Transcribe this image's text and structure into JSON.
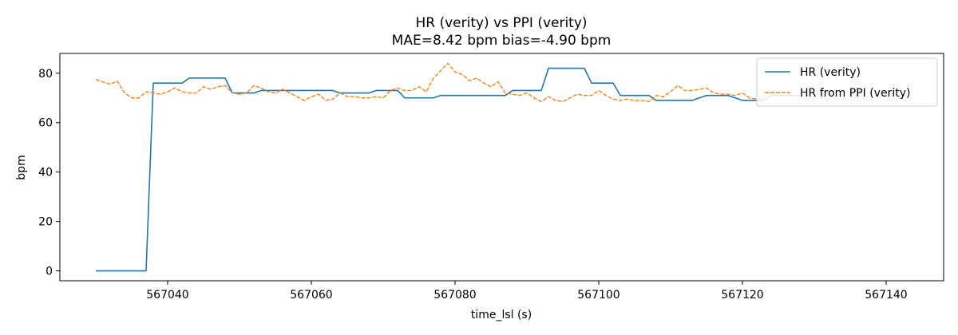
{
  "chart_data": {
    "type": "line",
    "title": "HR (verity) vs PPI (verity)",
    "subtitle": "MAE=8.42 bpm  bias=-4.90 bpm",
    "xlabel": "time_lsl (s)",
    "ylabel": "bpm",
    "xlim": [
      567025,
      567148
    ],
    "ylim": [
      -4,
      88
    ],
    "xticks": [
      567040,
      567060,
      567080,
      567100,
      567120,
      567140
    ],
    "yticks": [
      0,
      20,
      40,
      60,
      80
    ],
    "grid": false,
    "legend_position": "top-right",
    "series": [
      {
        "name": "HR (verity)",
        "color": "#1f77b4",
        "style": "solid",
        "points": [
          [
            567030,
            0
          ],
          [
            567037,
            0
          ],
          [
            567038,
            76
          ],
          [
            567042,
            76
          ],
          [
            567043,
            78
          ],
          [
            567048,
            78
          ],
          [
            567049,
            72
          ],
          [
            567052,
            72
          ],
          [
            567053,
            73
          ],
          [
            567063,
            73
          ],
          [
            567064,
            72
          ],
          [
            567068,
            72
          ],
          [
            567069,
            73
          ],
          [
            567072,
            73
          ],
          [
            567073,
            70
          ],
          [
            567077,
            70
          ],
          [
            567078,
            71
          ],
          [
            567087,
            71
          ],
          [
            567088,
            73
          ],
          [
            567092,
            73
          ],
          [
            567093,
            82
          ],
          [
            567098,
            82
          ],
          [
            567099,
            76
          ],
          [
            567102,
            76
          ],
          [
            567103,
            71
          ],
          [
            567107,
            71
          ],
          [
            567108,
            69
          ],
          [
            567113,
            69
          ],
          [
            567115,
            71
          ],
          [
            567118,
            71
          ],
          [
            567120,
            69
          ],
          [
            567123,
            69
          ],
          [
            567124,
            71
          ],
          [
            567128,
            71
          ]
        ]
      },
      {
        "name": "HR from PPI (verity)",
        "color": "#ff7f0e",
        "style": "dashed",
        "points": [
          [
            567030,
            77.5
          ],
          [
            567031,
            76.5
          ],
          [
            567032,
            75.5
          ],
          [
            567033,
            76.8
          ],
          [
            567034,
            72
          ],
          [
            567035,
            70
          ],
          [
            567036,
            70
          ],
          [
            567037,
            72.5
          ],
          [
            567038,
            72
          ],
          [
            567039,
            71.5
          ],
          [
            567040,
            72.5
          ],
          [
            567041,
            74
          ],
          [
            567042,
            72.5
          ],
          [
            567043,
            72
          ],
          [
            567044,
            72
          ],
          [
            567045,
            74.5
          ],
          [
            567046,
            73.5
          ],
          [
            567047,
            74.5
          ],
          [
            567048,
            75
          ],
          [
            567049,
            72
          ],
          [
            567050,
            71.5
          ],
          [
            567051,
            72
          ],
          [
            567052,
            75
          ],
          [
            567053,
            74
          ],
          [
            567054,
            72.5
          ],
          [
            567055,
            72
          ],
          [
            567056,
            73.5
          ],
          [
            567057,
            72
          ],
          [
            567058,
            70.5
          ],
          [
            567059,
            69
          ],
          [
            567060,
            70.5
          ],
          [
            567061,
            71.5
          ],
          [
            567062,
            69
          ],
          [
            567063,
            69.5
          ],
          [
            567064,
            72
          ],
          [
            567065,
            70.5
          ],
          [
            567066,
            70.5
          ],
          [
            567067,
            70
          ],
          [
            567068,
            70
          ],
          [
            567069,
            70.5
          ],
          [
            567070,
            70
          ],
          [
            567071,
            73
          ],
          [
            567072,
            74
          ],
          [
            567073,
            73
          ],
          [
            567074,
            73
          ],
          [
            567075,
            74.5
          ],
          [
            567076,
            72.5
          ],
          [
            567077,
            78
          ],
          [
            567078,
            81
          ],
          [
            567079,
            84
          ],
          [
            567080,
            80.5
          ],
          [
            567081,
            79.5
          ],
          [
            567082,
            77
          ],
          [
            567083,
            78
          ],
          [
            567084,
            76
          ],
          [
            567085,
            74.5
          ],
          [
            567086,
            76.5
          ],
          [
            567087,
            72
          ],
          [
            567088,
            71.5
          ],
          [
            567089,
            71
          ],
          [
            567090,
            72
          ],
          [
            567091,
            70
          ],
          [
            567092,
            68.5
          ],
          [
            567093,
            70.5
          ],
          [
            567094,
            69
          ],
          [
            567095,
            68.5
          ],
          [
            567096,
            70
          ],
          [
            567097,
            71.5
          ],
          [
            567098,
            71
          ],
          [
            567099,
            71
          ],
          [
            567100,
            73
          ],
          [
            567101,
            71
          ],
          [
            567102,
            69.5
          ],
          [
            567103,
            69
          ],
          [
            567104,
            69.5
          ],
          [
            567105,
            69
          ],
          [
            567106,
            69
          ],
          [
            567107,
            68.5
          ],
          [
            567108,
            71
          ],
          [
            567109,
            70.5
          ],
          [
            567110,
            72.5
          ],
          [
            567111,
            75
          ],
          [
            567112,
            73
          ],
          [
            567113,
            73
          ],
          [
            567114,
            73.5
          ],
          [
            567115,
            74
          ],
          [
            567116,
            72
          ],
          [
            567117,
            71.5
          ],
          [
            567118,
            71.5
          ],
          [
            567119,
            71
          ],
          [
            567120,
            72
          ],
          [
            567121,
            70
          ],
          [
            567122,
            69.5
          ],
          [
            567123,
            70
          ]
        ]
      }
    ]
  }
}
